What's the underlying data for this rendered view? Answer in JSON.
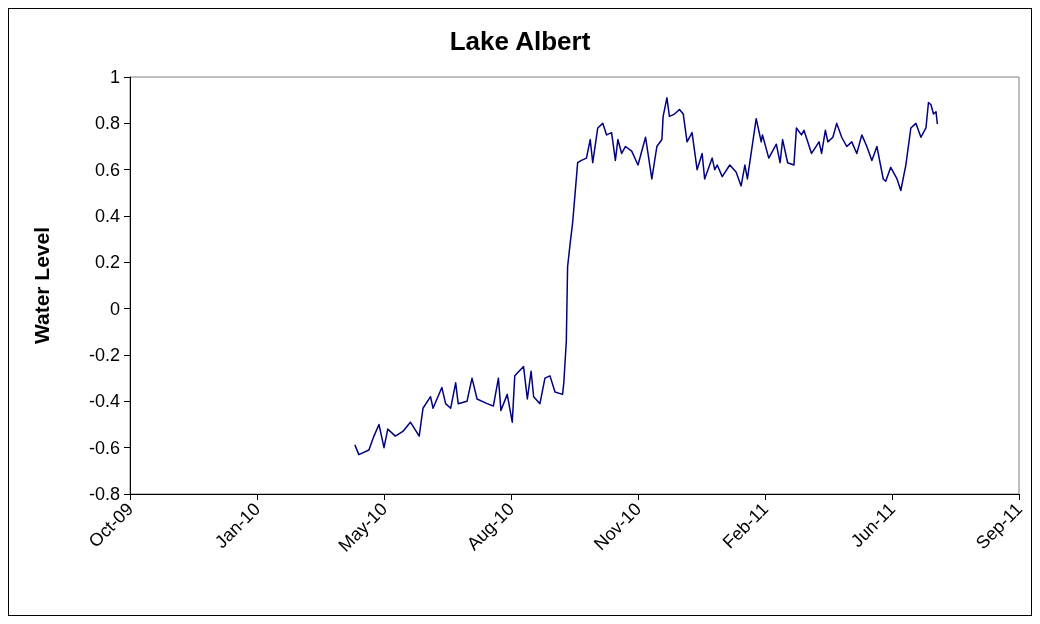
{
  "chart_data": {
    "type": "line",
    "title": "Lake Albert",
    "ylabel": "Water Level",
    "x": [
      "2010-04-08",
      "2010-04-11",
      "2010-04-19",
      "2010-04-23",
      "2010-04-27",
      "2010-05-01",
      "2010-05-04",
      "2010-05-10",
      "2010-05-16",
      "2010-05-22",
      "2010-05-29",
      "2010-06-01",
      "2010-06-07",
      "2010-06-09",
      "2010-06-16",
      "2010-06-19",
      "2010-06-23",
      "2010-06-27",
      "2010-06-29",
      "2010-07-06",
      "2010-07-10",
      "2010-07-14",
      "2010-07-22",
      "2010-07-27",
      "2010-07-31",
      "2010-08-02",
      "2010-08-07",
      "2010-08-11",
      "2010-08-13",
      "2010-08-20",
      "2010-08-23",
      "2010-08-26",
      "2010-08-28",
      "2010-09-02",
      "2010-09-06",
      "2010-09-10",
      "2010-09-14",
      "2010-09-20",
      "2010-09-21",
      "2010-09-23",
      "2010-09-24",
      "2010-09-26",
      "2010-09-28",
      "2010-09-30",
      "2010-10-02",
      "2010-10-05",
      "2010-10-09",
      "2010-10-12",
      "2010-10-14",
      "2010-10-18",
      "2010-10-22",
      "2010-10-25",
      "2010-10-29",
      "2010-11-01",
      "2010-11-03",
      "2010-11-06",
      "2010-11-09",
      "2010-11-14",
      "2010-11-19",
      "2010-11-25",
      "2010-11-30",
      "2010-12-04",
      "2010-12-08",
      "2010-12-09",
      "2010-12-12",
      "2010-12-14",
      "2010-12-18",
      "2010-12-22",
      "2010-12-25",
      "2010-12-28",
      "2011-01-01",
      "2011-01-05",
      "2011-01-09",
      "2011-01-11",
      "2011-01-17",
      "2011-01-19",
      "2011-01-21",
      "2011-01-25",
      "2011-01-31",
      "2011-02-05",
      "2011-02-09",
      "2011-02-12",
      "2011-02-14",
      "2011-02-21",
      "2011-02-25",
      "2011-02-26",
      "2011-03-03",
      "2011-03-06",
      "2011-03-09",
      "2011-03-12",
      "2011-03-14",
      "2011-03-18",
      "2011-03-23",
      "2011-03-25",
      "2011-03-29",
      "2011-03-31",
      "2011-04-06",
      "2011-04-12",
      "2011-04-14",
      "2011-04-17",
      "2011-04-19",
      "2011-04-23",
      "2011-04-26",
      "2011-04-30",
      "2011-05-04",
      "2011-05-08",
      "2011-05-12",
      "2011-05-16",
      "2011-05-20",
      "2011-05-24",
      "2011-05-28",
      "2011-06-02",
      "2011-06-04",
      "2011-06-08",
      "2011-06-13",
      "2011-06-16",
      "2011-06-20",
      "2011-06-24",
      "2011-06-28",
      "2011-07-02",
      "2011-07-06",
      "2011-07-08",
      "2011-07-10",
      "2011-07-12",
      "2011-07-14",
      "2011-07-15"
    ],
    "series": [
      {
        "color": "#000080",
        "values": [
          -0.59,
          -0.63,
          -0.61,
          -0.55,
          -0.5,
          -0.6,
          -0.52,
          -0.55,
          -0.53,
          -0.49,
          -0.55,
          -0.43,
          -0.38,
          -0.43,
          -0.34,
          -0.41,
          -0.43,
          -0.32,
          -0.41,
          -0.4,
          -0.3,
          -0.39,
          -0.41,
          -0.42,
          -0.3,
          -0.44,
          -0.37,
          -0.49,
          -0.29,
          -0.25,
          -0.39,
          -0.27,
          -0.38,
          -0.41,
          -0.3,
          -0.29,
          -0.36,
          -0.37,
          -0.32,
          -0.14,
          0.18,
          0.28,
          0.37,
          0.5,
          0.63,
          0.64,
          0.65,
          0.73,
          0.63,
          0.78,
          0.8,
          0.75,
          0.76,
          0.64,
          0.73,
          0.67,
          0.7,
          0.68,
          0.62,
          0.74,
          0.56,
          0.7,
          0.73,
          0.83,
          0.91,
          0.83,
          0.84,
          0.86,
          0.84,
          0.72,
          0.76,
          0.6,
          0.67,
          0.56,
          0.65,
          0.6,
          0.62,
          0.57,
          0.62,
          0.59,
          0.53,
          0.62,
          0.56,
          0.82,
          0.72,
          0.75,
          0.65,
          0.68,
          0.71,
          0.63,
          0.73,
          0.63,
          0.62,
          0.78,
          0.75,
          0.77,
          0.67,
          0.72,
          0.67,
          0.77,
          0.72,
          0.74,
          0.8,
          0.74,
          0.7,
          0.72,
          0.67,
          0.75,
          0.7,
          0.64,
          0.7,
          0.56,
          0.55,
          0.61,
          0.56,
          0.51,
          0.62,
          0.78,
          0.8,
          0.74,
          0.78,
          0.89,
          0.88,
          0.84,
          0.85,
          0.8
        ]
      }
    ],
    "xlim": [
      "2009-10-11",
      "2011-09-18"
    ],
    "xticks": [
      {
        "value": "2009-10-11",
        "label": "Oct-09"
      },
      {
        "value": "2010-01-20",
        "label": "Jan-10"
      },
      {
        "value": "2010-05-01",
        "label": "May-10"
      },
      {
        "value": "2010-08-10",
        "label": "Aug-10"
      },
      {
        "value": "2010-11-19",
        "label": "Nov-10"
      },
      {
        "value": "2011-02-28",
        "label": "Feb-11"
      },
      {
        "value": "2011-06-09",
        "label": "Jun-11"
      },
      {
        "value": "2011-09-18",
        "label": "Sep-11"
      }
    ],
    "ylim": [
      -0.8,
      1
    ],
    "yticks": [
      -0.8,
      -0.6,
      -0.4,
      -0.2,
      0,
      0.2,
      0.4,
      0.6,
      0.8,
      1
    ],
    "grid": false,
    "marker": "none",
    "line_style": "solid"
  }
}
